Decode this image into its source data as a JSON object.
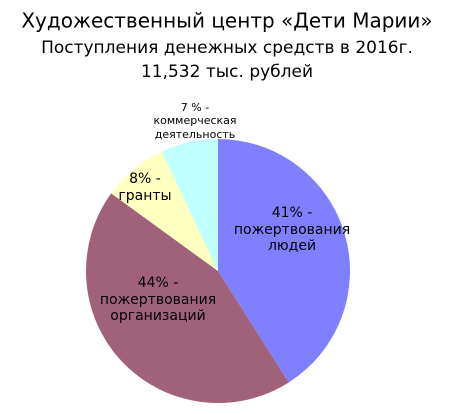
{
  "chart_data": {
    "type": "pie",
    "title": "Художественный центр «Дети Марии»",
    "subtitle": "Поступления денежных средств в 2016г.",
    "total": "11,532 тыс. рублей",
    "categories": [
      "пожертвования людей",
      "пожертвования организаций",
      "гранты",
      "коммерческая деятельность"
    ],
    "values": [
      41,
      44,
      8,
      7
    ],
    "value_labels": [
      "41% -",
      "44% -",
      "8% -",
      "7 % -"
    ],
    "colors": [
      "#8080ff",
      "#a0627a",
      "#ffffc0",
      "#c0ffff"
    ]
  }
}
